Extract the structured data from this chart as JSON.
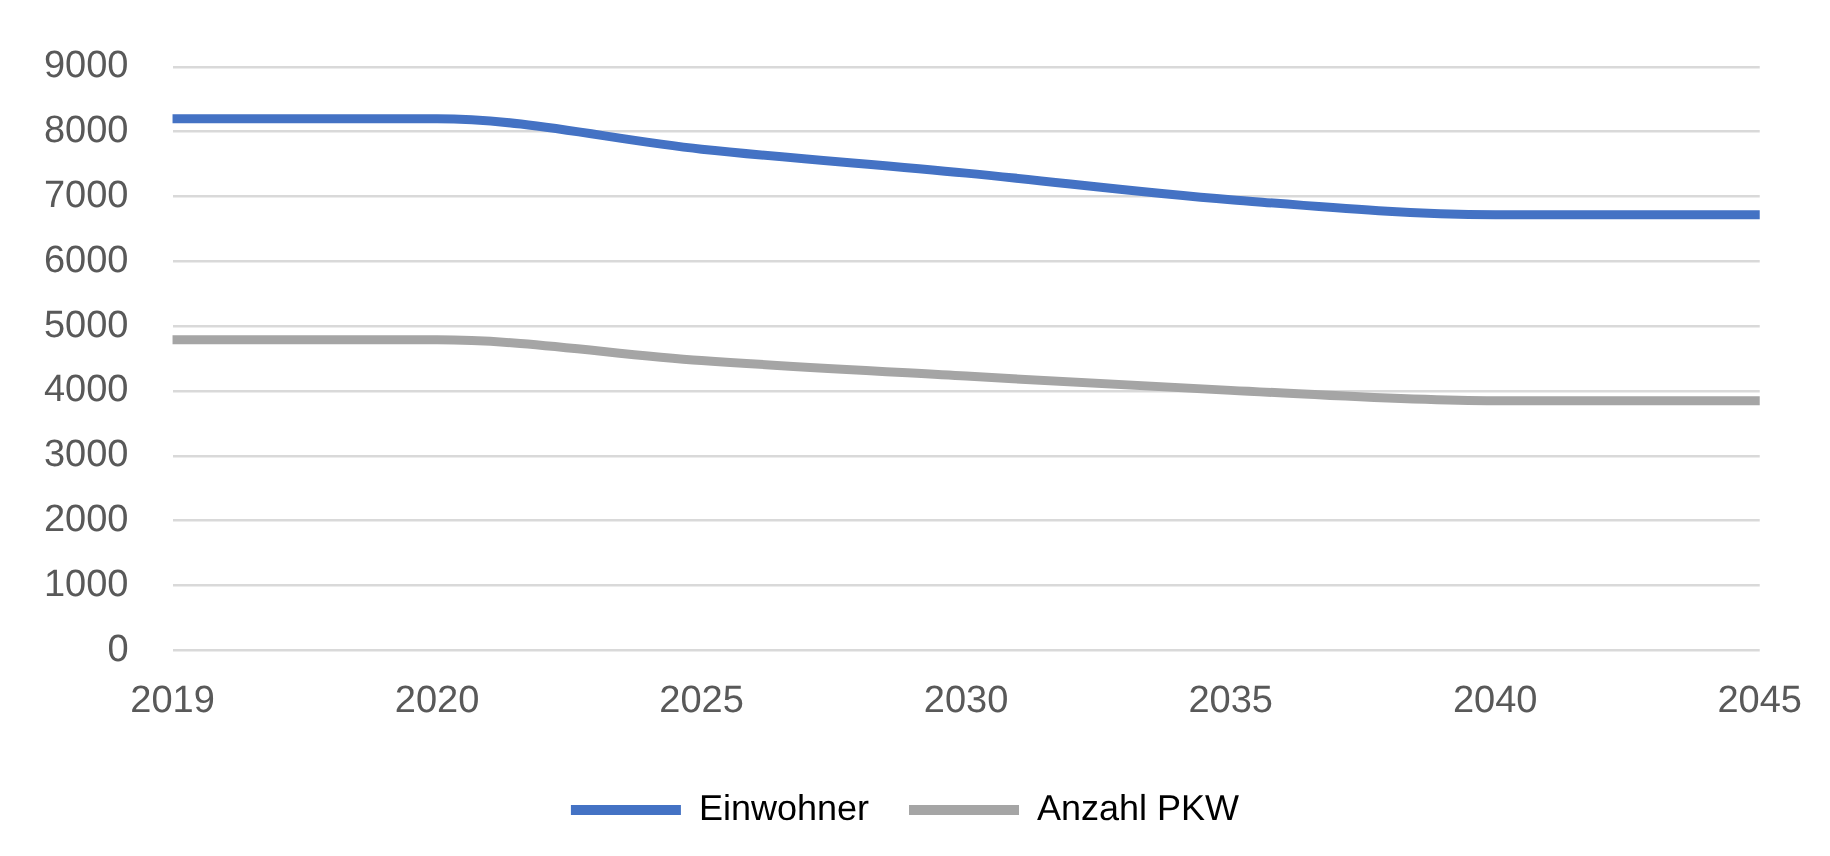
{
  "chart_data": {
    "type": "line",
    "categories": [
      "2019",
      "2020",
      "2025",
      "2030",
      "2035",
      "2040",
      "2045"
    ],
    "series": [
      {
        "name": "Einwohner",
        "color": "#4472c4",
        "values": [
          8200,
          8200,
          7730,
          7360,
          6950,
          6720,
          6720
        ]
      },
      {
        "name": "Anzahl PKW",
        "color": "#a5a5a5",
        "values": [
          4790,
          4790,
          4470,
          4230,
          4010,
          3850,
          3850
        ]
      }
    ],
    "ylim": [
      0,
      9000
    ],
    "yticks": [
      0,
      1000,
      2000,
      3000,
      4000,
      5000,
      6000,
      7000,
      8000,
      9000
    ],
    "grid": "y",
    "legend": "bottom",
    "marker": "none",
    "line_style": "solid"
  }
}
